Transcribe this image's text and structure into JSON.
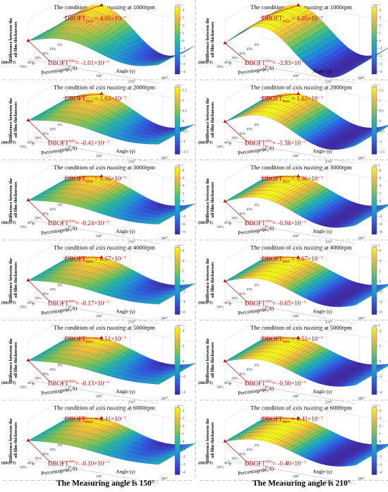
{
  "columns": [
    {
      "caption": "The Measuring angle is 150°"
    },
    {
      "caption": "The Measuring angle is 210°"
    }
  ],
  "common": {
    "zlabel_line1": "Difference between the",
    "zlabel_line2": "oil film thicknesses",
    "zlabel_abbr": "(DBOFT)",
    "xlabel": "Angle (γ)",
    "ylabel": "Percentage (eᵧ/δ)",
    "max_label": "DBOFT",
    "max_sub": "max",
    "p50_label": "DBOFT",
    "p50_sup": "50%",
    "p50_sub": "γr",
    "angle_ticks": [
      "0°",
      "90°",
      "180°",
      "270°",
      "360°"
    ],
    "pct_ticks": [
      "0%",
      "10%",
      "20%",
      "30%",
      "40%",
      "50%"
    ],
    "colormap": [
      "#3e26a8",
      "#2f58e6",
      "#1e96d9",
      "#27b89f",
      "#8ac54f",
      "#f0ba3d",
      "#f8f918"
    ]
  },
  "chart_data": [
    {
      "type": "surface",
      "col": 0,
      "title": "The condition of axis running at 1000rpm",
      "max_value": "4.05×10⁻⁷",
      "p50_value": "-1.01×10⁻⁷",
      "cbar_exp": "×10⁻⁷",
      "cbar_ticks": [
        "4",
        "3",
        "2",
        "1",
        "0",
        "-1",
        "-2",
        "-3",
        "-4"
      ],
      "amplitude": 4.05,
      "symmetric": false
    },
    {
      "type": "surface",
      "col": 1,
      "title": "The condition of axis running at 1000rpm",
      "max_value": "4.05×10⁻⁷",
      "p50_value": "-3.93×10⁻⁷",
      "cbar_exp": "×10⁻⁷",
      "cbar_ticks": [
        "4",
        "3",
        "2",
        "1",
        "0",
        "-1",
        "-2",
        "-3",
        "-4"
      ],
      "amplitude": 4.05,
      "symmetric": true
    },
    {
      "type": "surface",
      "col": 0,
      "title": "The condition of axis running at 2000rpm",
      "max_value": "1.63×10⁻⁷",
      "p50_value": "-0.41×10⁻⁷",
      "cbar_exp": "×10⁻⁷",
      "cbar_ticks": [
        "1.5",
        "1",
        "0.5",
        "0",
        "-0.5",
        "-1",
        "-1.5"
      ],
      "amplitude": 1.63,
      "symmetric": false
    },
    {
      "type": "surface",
      "col": 1,
      "title": "The condition of axis running at 2000rpm",
      "max_value": "1.63×10⁻⁷",
      "p50_value": "-1.58×10⁻⁷",
      "cbar_exp": "×10⁻⁷",
      "cbar_ticks": [
        "1.5",
        "1",
        "0.5",
        "0",
        "-0.5",
        "-1",
        "-1.5"
      ],
      "amplitude": 1.63,
      "symmetric": true
    },
    {
      "type": "surface",
      "col": 0,
      "title": "The condition of axis running at 3000rpm",
      "max_value": "0.96×10⁻⁷",
      "p50_value": "-0.24×10⁻⁷",
      "cbar_exp": "×10⁻⁸",
      "cbar_ticks": [
        "8",
        "6",
        "4",
        "2",
        "0",
        "-2",
        "-4",
        "-6",
        "-8"
      ],
      "amplitude": 0.96,
      "symmetric": false
    },
    {
      "type": "surface",
      "col": 1,
      "title": "The condition of axis running at 3000rpm",
      "max_value": "0.96×10⁻⁷",
      "p50_value": "-0.94×10⁻⁷",
      "cbar_exp": "×10⁻⁸",
      "cbar_ticks": [
        "8",
        "6",
        "4",
        "2",
        "0",
        "-2",
        "-4",
        "-6",
        "-8"
      ],
      "amplitude": 0.96,
      "symmetric": true
    },
    {
      "type": "surface",
      "col": 0,
      "title": "The condition of axis running at 4000rpm",
      "max_value": "0.67×10⁻⁷",
      "p50_value": "-0.17×10⁻⁷",
      "cbar_exp": "×10⁻⁸",
      "cbar_ticks": [
        "6",
        "4",
        "2",
        "0",
        "-2",
        "-4",
        "-6"
      ],
      "amplitude": 0.67,
      "symmetric": false
    },
    {
      "type": "surface",
      "col": 1,
      "title": "The condition of axis running at 4000rpm",
      "max_value": "0.67×10⁻⁷",
      "p50_value": "-0.65×10⁻⁷",
      "cbar_exp": "×10⁻⁸",
      "cbar_ticks": [
        "6",
        "4",
        "2",
        "0",
        "-2",
        "-4",
        "-6"
      ],
      "amplitude": 0.67,
      "symmetric": true
    },
    {
      "type": "surface",
      "col": 0,
      "title": "The condition of axis running at 5000rpm",
      "max_value": "0.51×10⁻⁷",
      "p50_value": "-0.13×10⁻⁷",
      "cbar_exp": "×10⁻⁸",
      "cbar_ticks": [
        "4",
        "2",
        "0",
        "-2",
        "-4"
      ],
      "amplitude": 0.51,
      "symmetric": false
    },
    {
      "type": "surface",
      "col": 1,
      "title": "The condition of axis running at 5000rpm",
      "max_value": "0.51×10⁻⁷",
      "p50_value": "-0.50×10⁻⁷",
      "cbar_exp": "×10⁻⁸",
      "cbar_ticks": [
        "4",
        "2",
        "0",
        "-2",
        "-4"
      ],
      "amplitude": 0.51,
      "symmetric": true
    },
    {
      "type": "surface",
      "col": 0,
      "title": "The condition of axis running at 6000rpm",
      "max_value": "0.41×10⁻⁷",
      "p50_value": "-0.10×10⁻⁷",
      "cbar_exp": "×10⁻⁸",
      "cbar_ticks": [
        "4",
        "3",
        "2",
        "1",
        "0",
        "-1",
        "-2",
        "-3",
        "-4"
      ],
      "amplitude": 0.41,
      "symmetric": false
    },
    {
      "type": "surface",
      "col": 1,
      "title": "The condition of axis running at 6000rpm",
      "max_value": "0.41×10⁻⁷",
      "p50_value": "-0.40×10⁻⁷",
      "cbar_exp": "×10⁻⁸",
      "cbar_ticks": [
        "4",
        "3",
        "2",
        "1",
        "0",
        "-1",
        "-2",
        "-3",
        "-4"
      ],
      "amplitude": 0.41,
      "symmetric": true
    }
  ]
}
